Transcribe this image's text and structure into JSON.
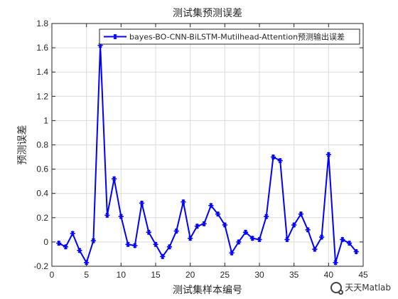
{
  "chart_data": {
    "type": "line",
    "title": "测试集预测误差",
    "xlabel": "测试集样本编号",
    "ylabel": "预测误差",
    "xlim": [
      0,
      45
    ],
    "ylim": [
      -0.2,
      1.8
    ],
    "xticks": [
      0,
      5,
      10,
      15,
      20,
      25,
      30,
      35,
      40,
      45
    ],
    "yticks": [
      -0.2,
      0,
      0.2,
      0.4,
      0.6,
      0.8,
      1,
      1.2,
      1.4,
      1.6,
      1.8
    ],
    "grid": true,
    "legend_position": "top-right",
    "x": [
      1,
      2,
      3,
      4,
      5,
      6,
      7,
      8,
      9,
      10,
      11,
      12,
      13,
      14,
      15,
      16,
      17,
      18,
      19,
      20,
      21,
      22,
      23,
      24,
      25,
      26,
      27,
      28,
      29,
      30,
      31,
      32,
      33,
      34,
      35,
      36,
      37,
      38,
      39,
      40,
      41,
      42,
      43,
      44
    ],
    "series": [
      {
        "name": "bayes-BO-CNN-BiLSTM-Mutilhead-Attention预测输出误差",
        "color": "#0000ff",
        "values": [
          -0.01,
          -0.04,
          0.07,
          -0.07,
          -0.17,
          0.01,
          1.62,
          0.22,
          0.52,
          0.21,
          -0.02,
          -0.03,
          0.32,
          0.08,
          -0.02,
          -0.12,
          -0.04,
          0.09,
          0.33,
          0.03,
          0.13,
          0.15,
          0.3,
          0.23,
          0.14,
          -0.09,
          0.0,
          0.08,
          0.03,
          0.02,
          0.21,
          0.7,
          0.67,
          0.02,
          0.14,
          0.23,
          0.1,
          -0.06,
          0.04,
          0.72,
          -0.17,
          0.02,
          -0.01,
          -0.08
        ]
      }
    ]
  },
  "watermark": {
    "text": "天天Matlab",
    "icon": "wechat-icon"
  }
}
